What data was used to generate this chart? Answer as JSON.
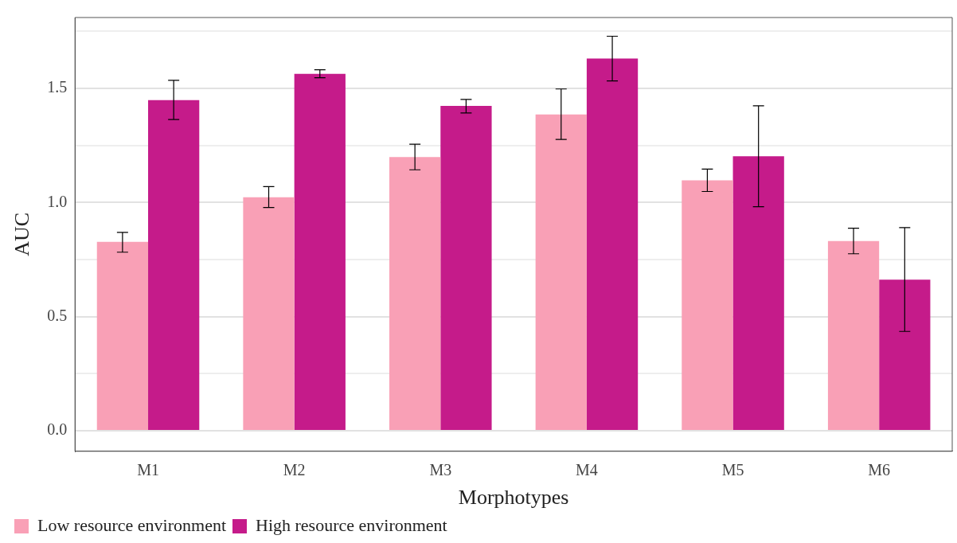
{
  "chart_data": {
    "type": "bar",
    "xlabel": "Morphotypes",
    "ylabel": "AUC",
    "categories": [
      "M1",
      "M2",
      "M3",
      "M4",
      "M5",
      "M6"
    ],
    "series": [
      {
        "name": "Low resource environment",
        "color": "#f9a0b6",
        "values": [
          0.827,
          1.023,
          1.199,
          1.385,
          1.097,
          0.831
        ],
        "errors": [
          [
            0.782,
            0.869
          ],
          [
            0.978,
            1.069
          ],
          [
            1.143,
            1.255
          ],
          [
            1.276,
            1.497
          ],
          [
            1.048,
            1.146
          ],
          [
            0.775,
            0.887
          ]
        ]
      },
      {
        "name": "High resource environment",
        "color": "#c51b8a",
        "values": [
          1.448,
          1.563,
          1.423,
          1.63,
          1.202,
          0.662
        ],
        "errors": [
          [
            1.363,
            1.535
          ],
          [
            1.546,
            1.581
          ],
          [
            1.392,
            1.451
          ],
          [
            1.532,
            1.728
          ],
          [
            0.981,
            1.423
          ],
          [
            0.435,
            0.89
          ]
        ]
      }
    ],
    "ylim": [
      -0.09,
      1.81
    ],
    "yticks": [
      {
        "value": 0,
        "label": "0.0"
      },
      {
        "value": 0.25,
        "label": null
      },
      {
        "value": 0.5,
        "label": "0.5"
      },
      {
        "value": 0.75,
        "label": null
      },
      {
        "value": 1,
        "label": "1.0"
      },
      {
        "value": 1.25,
        "label": null
      },
      {
        "value": 1.5,
        "label": "1.5"
      },
      {
        "value": 1.75,
        "label": null
      }
    ],
    "grid": "y",
    "legend": "bottom left"
  }
}
